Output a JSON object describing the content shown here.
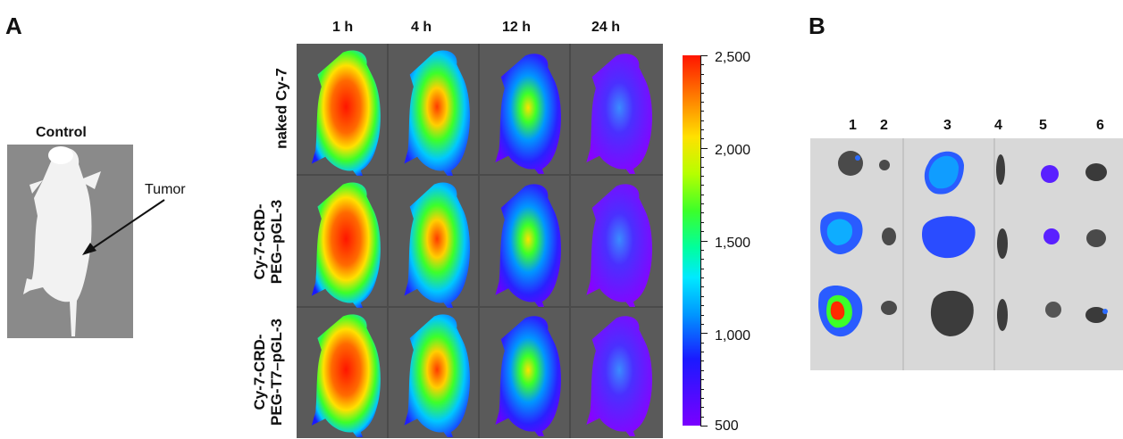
{
  "panel_a_label": "A",
  "panel_b_label": "B",
  "control": {
    "title": "Control",
    "tumor_label": "Tumor"
  },
  "time_points": [
    "1 h",
    "4 h",
    "12 h",
    "24 h"
  ],
  "row_labels": [
    {
      "line1": "naked Cy-7",
      "line2": ""
    },
    {
      "line1": "Cy-7-CRD-",
      "line2": "PEG–pGL-3"
    },
    {
      "line1": "Cy-7-CRD-",
      "line2": "PEG-T7–pGL-3"
    }
  ],
  "colorbar": {
    "ticks": [
      "2,500",
      "2,000",
      "1,500",
      "1,000",
      "500"
    ],
    "max": 2500,
    "min": 500
  },
  "organs": [
    "1",
    "2",
    "3",
    "4",
    "5",
    "6"
  ],
  "colors": {
    "hot": "#ff1500",
    "mid": "#3cff2a",
    "cool": "#0096ff",
    "low": "#7a00ff"
  }
}
